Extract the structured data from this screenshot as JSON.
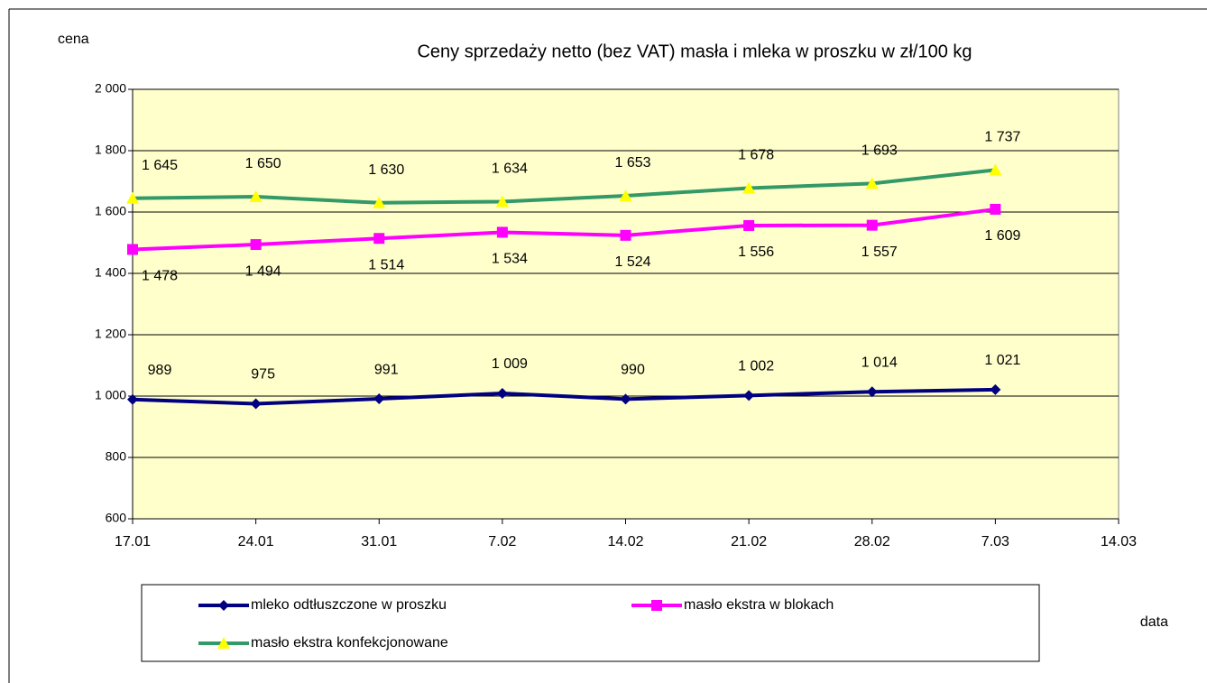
{
  "chart_data": {
    "type": "line",
    "title": "Ceny sprzedaży netto (bez VAT) masła i mleka w proszku w zł/100 kg",
    "y_label": "cena",
    "x_label": "data",
    "categories": [
      "17.01",
      "24.01",
      "31.01",
      "7.02",
      "14.02",
      "21.02",
      "28.02",
      "7.03",
      "14.03"
    ],
    "series": [
      {
        "name": "mleko odtłuszczone w proszku",
        "color": "#000080",
        "marker": "diamond",
        "marker_color": "#000080",
        "values": [
          989,
          975,
          991,
          1009,
          990,
          1002,
          1014,
          1021,
          null
        ],
        "value_labels": [
          "989",
          "975",
          "991",
          "1 009",
          "990",
          "1 002",
          "1 014",
          "1 021",
          null
        ]
      },
      {
        "name": "masło ekstra w blokach",
        "color": "#ff00ff",
        "marker": "square",
        "marker_color": "#ff00ff",
        "values": [
          1478,
          1494,
          1514,
          1534,
          1524,
          1556,
          1557,
          1609,
          null
        ],
        "value_labels": [
          "1 478",
          "1 494",
          "1 514",
          "1 534",
          "1 524",
          "1 556",
          "1 557",
          "1 609",
          null
        ]
      },
      {
        "name": "masło ekstra konfekcjonowane",
        "color": "#339966",
        "marker": "triangle",
        "marker_color": "#ffff00",
        "values": [
          1645,
          1650,
          1630,
          1634,
          1653,
          1678,
          1693,
          1737,
          null
        ],
        "value_labels": [
          "1 645",
          "1 650",
          "1 630",
          "1 634",
          "1 653",
          "1 678",
          "1 693",
          "1 737",
          null
        ]
      }
    ],
    "ylim": [
      600,
      2000
    ],
    "yticks": [
      600,
      800,
      {
        "value": 1000,
        "label": "1 000"
      },
      {
        "value": 1200,
        "label": "1 200"
      },
      {
        "value": 1400,
        "label": "1 400"
      },
      {
        "value": 1600,
        "label": "1 600"
      },
      {
        "value": 1800,
        "label": "1 800"
      },
      {
        "value": 2000,
        "label": "2 000"
      }
    ],
    "grid": true,
    "plot_background": "#ffffcc"
  }
}
